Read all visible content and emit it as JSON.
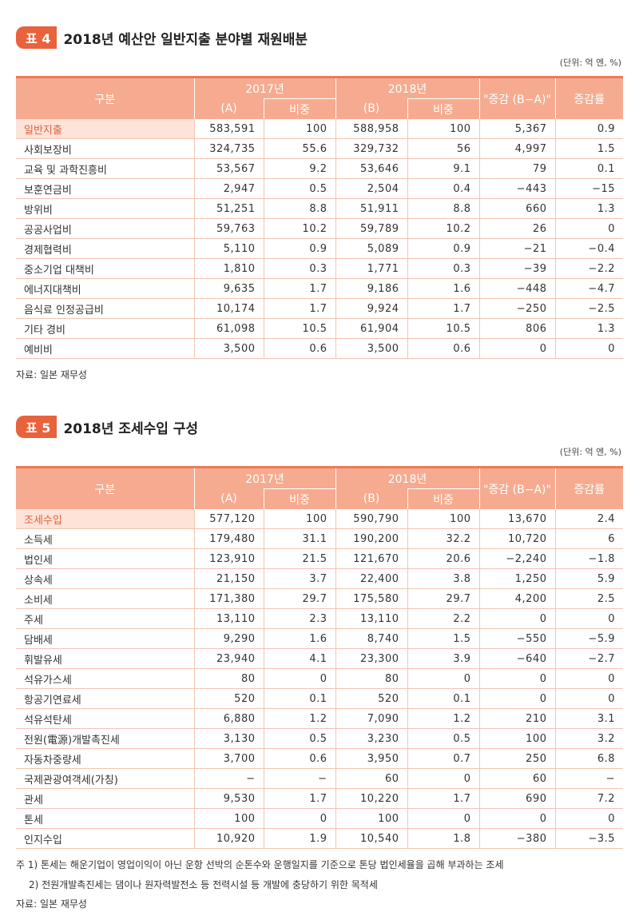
{
  "table4": {
    "badge": "표 4",
    "title": "2018년 예산안 일반지출 분야별 재원배분",
    "unit": "(단위: 억 엔, %)",
    "headers": {
      "category": "구분",
      "y2017": "2017년",
      "a": "(A)",
      "share": "비중",
      "y2018": "2018년",
      "b": "(B)",
      "change": "\"증감 (B−A)\"",
      "rate": "증감률"
    },
    "rows": [
      [
        "일반지출",
        "583,591",
        "100",
        "588,958",
        "100",
        "5,367",
        "0.9"
      ],
      [
        "사회보장비",
        "324,735",
        "55.6",
        "329,732",
        "56",
        "4,997",
        "1.5"
      ],
      [
        "교육 및 과학진흥비",
        "53,567",
        "9.2",
        "53,646",
        "9.1",
        "79",
        "0.1"
      ],
      [
        "보훈연금비",
        "2,947",
        "0.5",
        "2,504",
        "0.4",
        "−443",
        "−15"
      ],
      [
        "방위비",
        "51,251",
        "8.8",
        "51,911",
        "8.8",
        "660",
        "1.3"
      ],
      [
        "공공사업비",
        "59,763",
        "10.2",
        "59,789",
        "10.2",
        "26",
        "0"
      ],
      [
        "경제협력비",
        "5,110",
        "0.9",
        "5,089",
        "0.9",
        "−21",
        "−0.4"
      ],
      [
        "중소기업 대책비",
        "1,810",
        "0.3",
        "1,771",
        "0.3",
        "−39",
        "−2.2"
      ],
      [
        "에너지대책비",
        "9,635",
        "1.7",
        "9,186",
        "1.6",
        "−448",
        "−4.7"
      ],
      [
        "음식료 인정공급비",
        "10,174",
        "1.7",
        "9,924",
        "1.7",
        "−250",
        "−2.5"
      ],
      [
        "기타 경비",
        "61,098",
        "10.5",
        "61,904",
        "10.5",
        "806",
        "1.3"
      ],
      [
        "예비비",
        "3,500",
        "0.6",
        "3,500",
        "0.6",
        "0",
        "0"
      ]
    ],
    "source": "자료: 일본 재무성"
  },
  "table5": {
    "badge": "표 5",
    "title": "2018년 조세수입 구성",
    "unit": "(단위: 억 엔, %)",
    "headers": {
      "category": "구분",
      "y2017": "2017년",
      "a": "(A)",
      "share": "비중",
      "y2018": "2018년",
      "b": "(B)",
      "change": "\"증감 (B−A)\"",
      "rate": "증감률"
    },
    "rows": [
      [
        "조세수입",
        "577,120",
        "100",
        "590,790",
        "100",
        "13,670",
        "2.4"
      ],
      [
        "소득세",
        "179,480",
        "31.1",
        "190,200",
        "32.2",
        "10,720",
        "6"
      ],
      [
        "법인세",
        "123,910",
        "21.5",
        "121,670",
        "20.6",
        "−2,240",
        "−1.8"
      ],
      [
        "상속세",
        "21,150",
        "3.7",
        "22,400",
        "3.8",
        "1,250",
        "5.9"
      ],
      [
        "소비세",
        "171,380",
        "29.7",
        "175,580",
        "29.7",
        "4,200",
        "2.5"
      ],
      [
        "주세",
        "13,110",
        "2.3",
        "13,110",
        "2.2",
        "0",
        "0"
      ],
      [
        "담배세",
        "9,290",
        "1.6",
        "8,740",
        "1.5",
        "−550",
        "−5.9"
      ],
      [
        "휘발유세",
        "23,940",
        "4.1",
        "23,300",
        "3.9",
        "−640",
        "−2.7"
      ],
      [
        "석유가스세",
        "80",
        "0",
        "80",
        "0",
        "0",
        "0"
      ],
      [
        "항공기연료세",
        "520",
        "0.1",
        "520",
        "0.1",
        "0",
        "0"
      ],
      [
        "석유석탄세",
        "6,880",
        "1.2",
        "7,090",
        "1.2",
        "210",
        "3.1"
      ],
      [
        "전원(電源)개발촉진세",
        "3,130",
        "0.5",
        "3,230",
        "0.5",
        "100",
        "3.2"
      ],
      [
        "자동차중량세",
        "3,700",
        "0.6",
        "3,950",
        "0.7",
        "250",
        "6.8"
      ],
      [
        "국제관광여객세(가칭)",
        "−",
        "−",
        "60",
        "0",
        "60",
        "−"
      ],
      [
        "관세",
        "9,530",
        "1.7",
        "10,220",
        "1.7",
        "690",
        "7.2"
      ],
      [
        "톤세",
        "100",
        "0",
        "100",
        "0",
        "0",
        "0"
      ],
      [
        "인지수입",
        "10,920",
        "1.9",
        "10,540",
        "1.8",
        "−380",
        "−3.5"
      ]
    ],
    "notes": [
      "주 1) 톤세는 해운기업이 영업이익이 아닌 운항 선박의 순톤수와 운행일지를 기준으로 톤당 법인세율을 곱해 부과하는 조세",
      "2) 전원개발촉진세는 댐이나 원자력발전소 등 전력시설 등 개발에 충당하기 위한 목적세"
    ],
    "source": "자료: 일본 재무성"
  },
  "colors": {
    "accent": "#e8623c",
    "header": "#f6ab90",
    "highlight_bg": "#fde3d8"
  }
}
